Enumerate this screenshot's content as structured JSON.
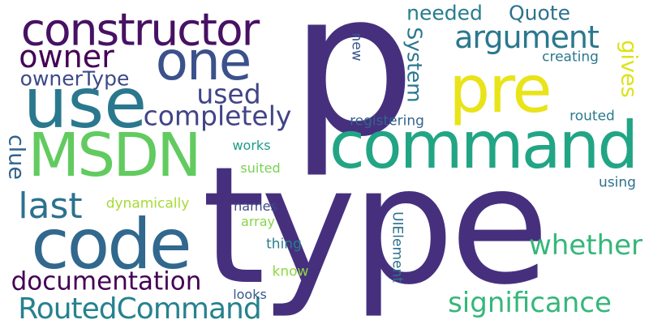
{
  "words": [
    {
      "text": "type",
      "color": "#46307e"
    },
    {
      "text": "p",
      "color": "#46307e"
    },
    {
      "text": "command",
      "color": "#21a585"
    },
    {
      "text": "use",
      "color": "#2a788e"
    },
    {
      "text": "MSDN",
      "color": "#62cb5f"
    },
    {
      "text": "code",
      "color": "#31688e"
    },
    {
      "text": "constructor",
      "color": "#471164"
    },
    {
      "text": "one",
      "color": "#3b518b"
    },
    {
      "text": "pre",
      "color": "#e8e419"
    },
    {
      "text": "argument",
      "color": "#2a788e"
    },
    {
      "text": "owner",
      "color": "#440154"
    },
    {
      "text": "last",
      "color": "#2c728e"
    },
    {
      "text": "RoutedCommand",
      "color": "#26828e"
    },
    {
      "text": "significance",
      "color": "#35b779"
    },
    {
      "text": "whether",
      "color": "#35b779"
    },
    {
      "text": "documentation",
      "color": "#440154"
    },
    {
      "text": "completely",
      "color": "#414487"
    },
    {
      "text": "used",
      "color": "#414487"
    },
    {
      "text": "needed",
      "color": "#287d8e"
    },
    {
      "text": "Quote",
      "color": "#2c728e"
    },
    {
      "text": "ownerType",
      "color": "#3e4989"
    },
    {
      "text": "clue",
      "color": "#33638d"
    },
    {
      "text": "gives",
      "color": "#dde318"
    },
    {
      "text": "System",
      "color": "#2a778e"
    },
    {
      "text": "new",
      "color": "#39568c"
    },
    {
      "text": "creating",
      "color": "#2a788e"
    },
    {
      "text": "routed",
      "color": "#297b8e"
    },
    {
      "text": "registering",
      "color": "#33638d"
    },
    {
      "text": "works",
      "color": "#1e9b8a"
    },
    {
      "text": "suited",
      "color": "#7ad151"
    },
    {
      "text": "dynamically",
      "color": "#a5db36"
    },
    {
      "text": "names",
      "color": "#3f4788"
    },
    {
      "text": "array",
      "color": "#86d549"
    },
    {
      "text": "using",
      "color": "#2d708e"
    },
    {
      "text": "thing",
      "color": "#287d8e"
    },
    {
      "text": "know",
      "color": "#8fd744"
    },
    {
      "text": "UIElement",
      "color": "#2d708e"
    },
    {
      "text": "looks",
      "color": "#38598c"
    }
  ]
}
